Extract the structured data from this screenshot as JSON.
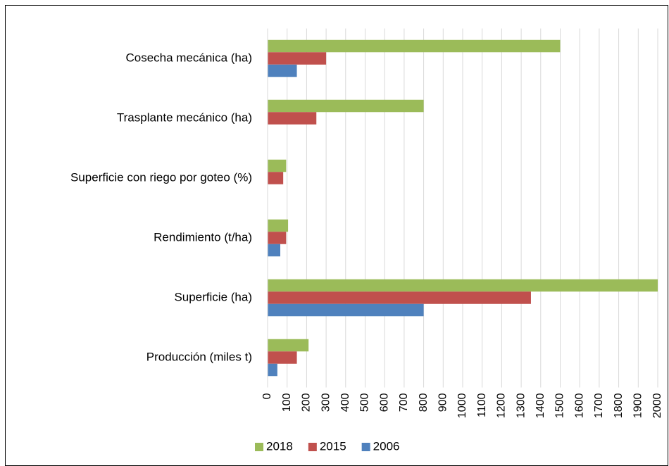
{
  "chart_data": {
    "type": "barh",
    "categories": [
      "Cosecha mecánica (ha)",
      "Trasplante mecánico (ha)",
      "Superficie con riego por goteo (%)",
      "Rendimiento (t/ha)",
      "Superficie (ha)",
      "Producción (miles t)"
    ],
    "series": [
      {
        "name": "2018",
        "color": "#9bbb59",
        "values": [
          1500,
          800,
          95,
          105,
          2000,
          210
        ]
      },
      {
        "name": "2015",
        "color": "#c0504d",
        "values": [
          300,
          250,
          80,
          95,
          1350,
          150
        ]
      },
      {
        "name": "2006",
        "color": "#4f81bd",
        "values": [
          150,
          null,
          null,
          65,
          800,
          50
        ]
      }
    ],
    "xlim": [
      0,
      2000
    ],
    "xticks": [
      0,
      100,
      200,
      300,
      400,
      500,
      600,
      700,
      800,
      900,
      1000,
      1100,
      1200,
      1300,
      1400,
      1500,
      1600,
      1700,
      1800,
      1900,
      2000
    ],
    "grid": true,
    "legend": "bottom"
  }
}
